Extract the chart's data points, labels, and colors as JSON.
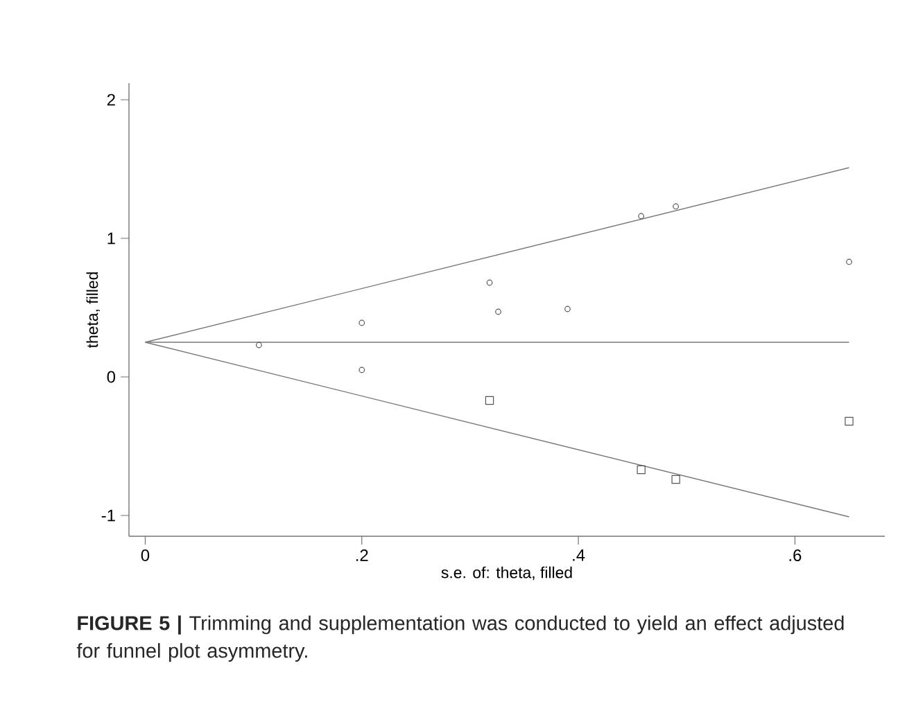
{
  "chart_data": {
    "type": "scatter",
    "xlabel": "s.e. of: theta, filled",
    "ylabel": "theta, filled",
    "annotations": [
      "**FIGURE 5 |** Trimming and supplementation was conducted to yield an effect adjusted for funnel plot asymmetry."
    ],
    "xlim": [
      -0.015,
      0.683
    ],
    "ylim": [
      -1.15,
      2.12
    ],
    "xticks": [
      0,
      {
        "value": 0.2,
        "label": ".2"
      },
      {
        "value": 0.4,
        "label": ".4"
      },
      {
        "value": 0.6,
        "label": ".6"
      }
    ],
    "yticks": [
      -1,
      0,
      1,
      2
    ],
    "series": [
      {
        "marker": "circle",
        "color": "#555555",
        "x": [
          0.105,
          0.2,
          0.2,
          0.318,
          0.326,
          0.39,
          0.458,
          0.49,
          0.65
        ],
        "values": [
          0.23,
          0.39,
          0.05,
          0.68,
          0.47,
          0.49,
          1.16,
          1.23,
          0.83
        ]
      },
      {
        "marker": "square",
        "color": "#555555",
        "x": [
          0.318,
          0.458,
          0.49,
          0.65
        ],
        "values": [
          -0.17,
          -0.67,
          -0.74,
          -0.32
        ]
      },
      {
        "type": "line",
        "color": "#777777",
        "x": [
          0,
          0.65
        ],
        "values": [
          0.25,
          1.51
        ]
      },
      {
        "type": "line",
        "color": "#777777",
        "x": [
          0,
          0.65
        ],
        "values": [
          0.25,
          0.25
        ]
      },
      {
        "type": "line",
        "color": "#777777",
        "x": [
          0,
          0.65
        ],
        "values": [
          0.25,
          -1.01
        ]
      }
    ]
  }
}
